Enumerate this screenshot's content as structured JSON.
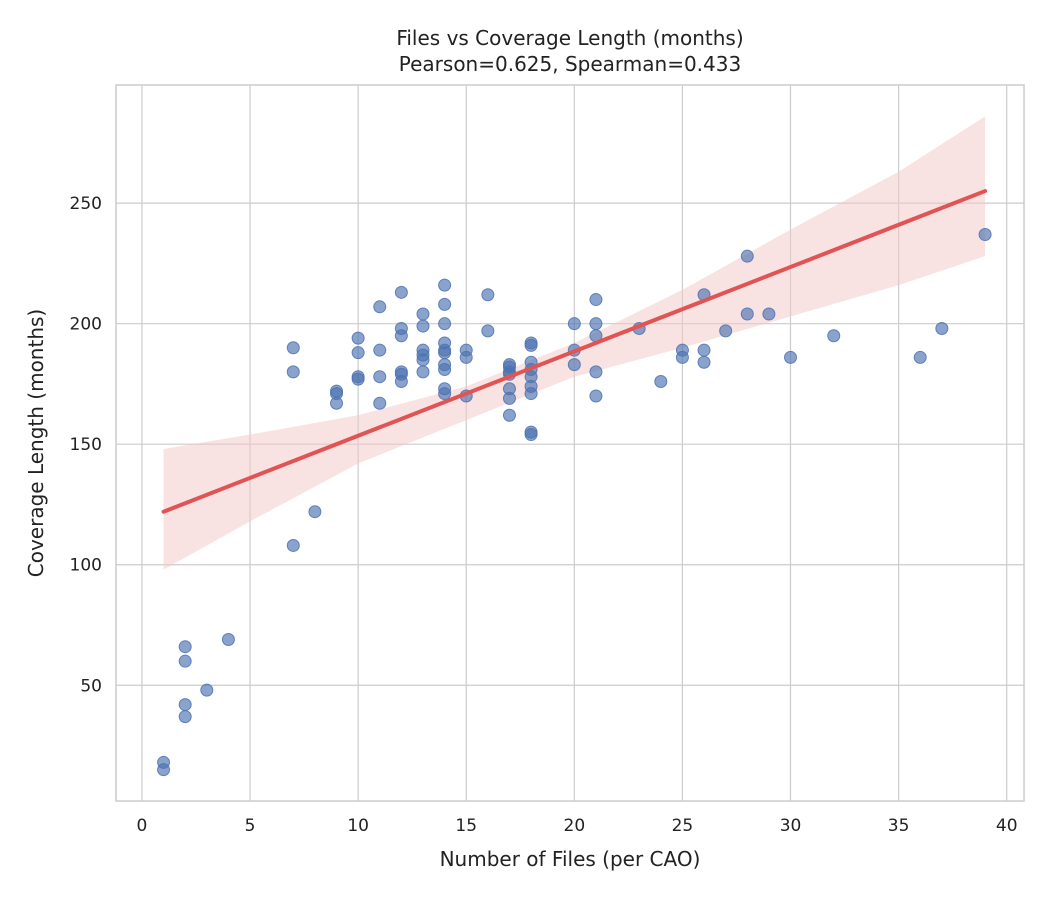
{
  "chart_data": {
    "type": "scatter",
    "title": "Files vs Coverage Length (months)",
    "subtitle": "Pearson=0.625, Spearman=0.433",
    "xlabel": "Number of Files (per CAO)",
    "ylabel": "Coverage Length (months)",
    "xlim": [
      -1.2,
      40.8
    ],
    "ylim": [
      2,
      299
    ],
    "x_ticks": [
      0,
      5,
      10,
      15,
      20,
      25,
      30,
      35,
      40
    ],
    "y_ticks": [
      50,
      100,
      150,
      200,
      250
    ],
    "grid": true,
    "colors": {
      "points": "#4c72b0",
      "regression": "#e05454",
      "band": "#f4c6c6",
      "grid": "#cccccc"
    },
    "regression": {
      "x": [
        1,
        39
      ],
      "y": [
        122,
        255
      ]
    },
    "confidence_band": {
      "x": [
        1,
        5,
        10,
        15,
        20,
        25,
        30,
        35,
        39
      ],
      "lower": [
        98,
        118,
        142,
        160,
        178,
        190,
        203,
        216,
        228
      ],
      "upper": [
        148,
        154,
        162,
        174,
        192,
        214,
        239,
        263,
        286
      ]
    },
    "points": [
      [
        1,
        18
      ],
      [
        1,
        15
      ],
      [
        2,
        66
      ],
      [
        2,
        60
      ],
      [
        2,
        42
      ],
      [
        2,
        37
      ],
      [
        3,
        48
      ],
      [
        4,
        69
      ],
      [
        7,
        190
      ],
      [
        7,
        180
      ],
      [
        7,
        108
      ],
      [
        8,
        122
      ],
      [
        9,
        172
      ],
      [
        9,
        171
      ],
      [
        9,
        167
      ],
      [
        10,
        194
      ],
      [
        10,
        188
      ],
      [
        10,
        178
      ],
      [
        10,
        177
      ],
      [
        11,
        207
      ],
      [
        11,
        189
      ],
      [
        11,
        178
      ],
      [
        11,
        167
      ],
      [
        12,
        213
      ],
      [
        12,
        198
      ],
      [
        12,
        195
      ],
      [
        12,
        180
      ],
      [
        12,
        179
      ],
      [
        12,
        176
      ],
      [
        13,
        204
      ],
      [
        13,
        199
      ],
      [
        13,
        189
      ],
      [
        13,
        187
      ],
      [
        13,
        185
      ],
      [
        13,
        180
      ],
      [
        14,
        216
      ],
      [
        14,
        208
      ],
      [
        14,
        200
      ],
      [
        14,
        192
      ],
      [
        14,
        189
      ],
      [
        14,
        188
      ],
      [
        14,
        183
      ],
      [
        14,
        181
      ],
      [
        14,
        173
      ],
      [
        14,
        171
      ],
      [
        15,
        189
      ],
      [
        15,
        186
      ],
      [
        15,
        170
      ],
      [
        16,
        212
      ],
      [
        16,
        197
      ],
      [
        17,
        183
      ],
      [
        17,
        182
      ],
      [
        17,
        180
      ],
      [
        17,
        179
      ],
      [
        17,
        173
      ],
      [
        17,
        169
      ],
      [
        17,
        162
      ],
      [
        18,
        192
      ],
      [
        18,
        191
      ],
      [
        18,
        184
      ],
      [
        18,
        181
      ],
      [
        18,
        178
      ],
      [
        18,
        174
      ],
      [
        18,
        171
      ],
      [
        18,
        155
      ],
      [
        18,
        154
      ],
      [
        20,
        200
      ],
      [
        20,
        189
      ],
      [
        20,
        183
      ],
      [
        21,
        210
      ],
      [
        21,
        200
      ],
      [
        21,
        195
      ],
      [
        21,
        180
      ],
      [
        21,
        170
      ],
      [
        23,
        198
      ],
      [
        24,
        176
      ],
      [
        25,
        189
      ],
      [
        25,
        186
      ],
      [
        26,
        212
      ],
      [
        26,
        189
      ],
      [
        26,
        184
      ],
      [
        27,
        197
      ],
      [
        28,
        228
      ],
      [
        28,
        204
      ],
      [
        29,
        204
      ],
      [
        30,
        186
      ],
      [
        32,
        195
      ],
      [
        36,
        186
      ],
      [
        37,
        198
      ],
      [
        39,
        237
      ]
    ]
  }
}
